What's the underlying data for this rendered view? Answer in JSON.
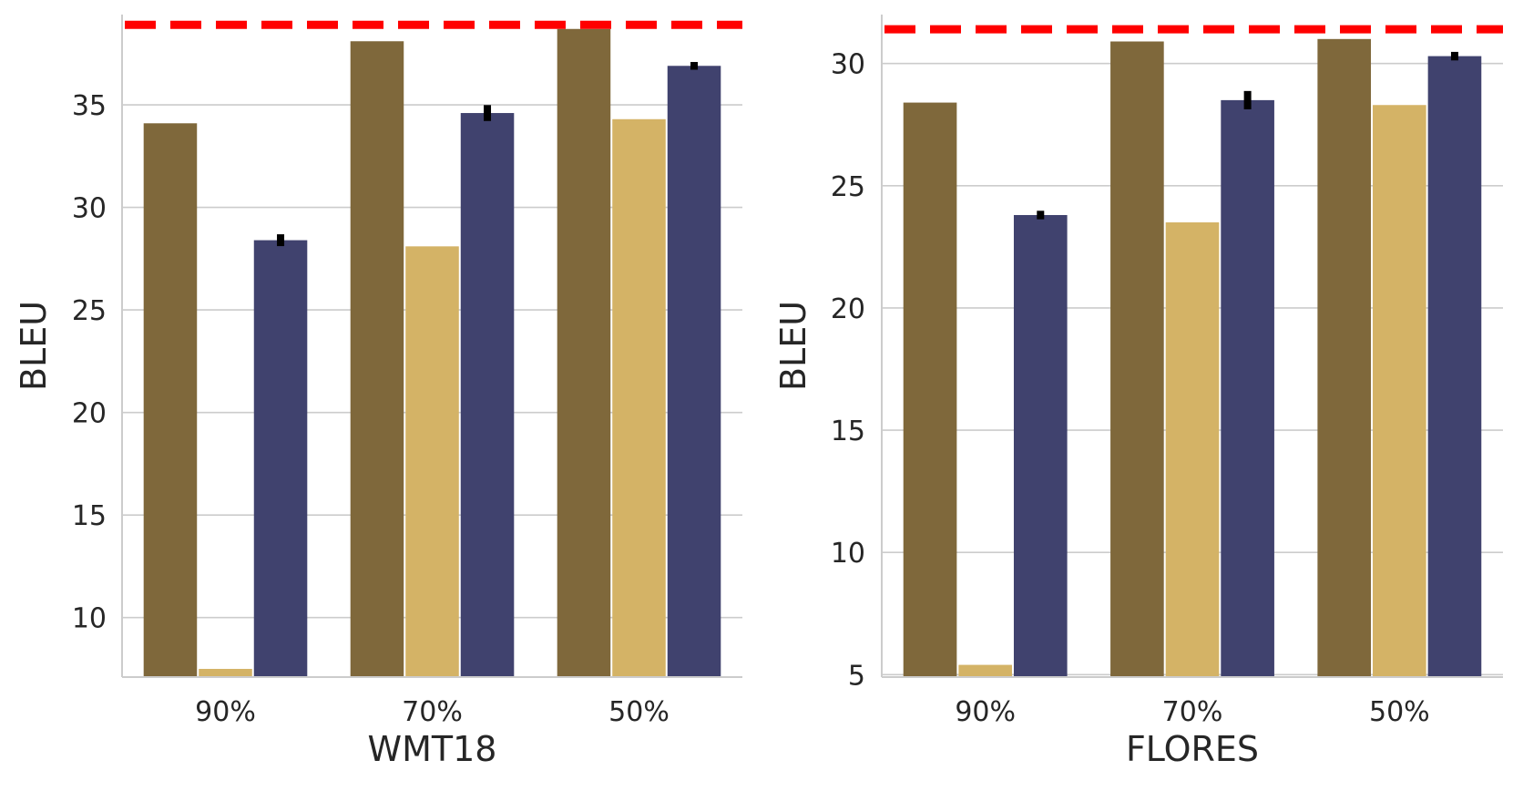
{
  "colors": {
    "series": [
      "#7f683b",
      "#d4b366",
      "#40426e"
    ],
    "reference_line": "#ff0000",
    "grid": "#cccccc",
    "axis": "#cccccc",
    "error_bar": "#000000",
    "text": "#262626"
  },
  "chart_data": [
    {
      "type": "bar",
      "xlabel": "WMT18",
      "ylabel": "BLEU",
      "categories": [
        "90%",
        "70%",
        "50%"
      ],
      "series": [
        {
          "values": [
            34.1,
            38.1,
            38.7
          ]
        },
        {
          "values": [
            7.5,
            28.1,
            34.3
          ]
        },
        {
          "values": [
            28.4,
            34.6,
            36.9
          ],
          "errors": [
            0.2,
            0.3,
            0.1
          ]
        }
      ],
      "reference_line": 38.9,
      "yticks": [
        10,
        15,
        20,
        25,
        30,
        35
      ],
      "ylim": [
        7.1,
        39.4
      ],
      "grid": "horizontal"
    },
    {
      "type": "bar",
      "xlabel": "FLORES",
      "ylabel": "BLEU",
      "categories": [
        "90%",
        "70%",
        "50%"
      ],
      "series": [
        {
          "values": [
            28.4,
            30.9,
            31.0
          ]
        },
        {
          "values": [
            5.4,
            23.5,
            28.3
          ]
        },
        {
          "values": [
            23.8,
            28.5,
            30.3
          ],
          "errors": [
            0.1,
            0.3,
            0.1
          ]
        }
      ],
      "reference_line": 31.4,
      "yticks": [
        5,
        10,
        15,
        20,
        25,
        30
      ],
      "ylim": [
        4.9,
        32.0
      ],
      "grid": "horizontal"
    }
  ]
}
